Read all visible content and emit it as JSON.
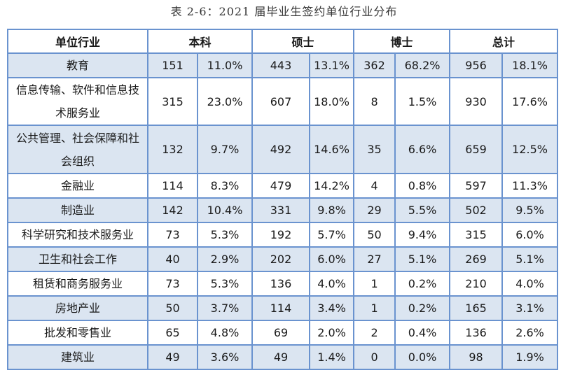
{
  "caption": "表 2-6：2021 届毕业生签约单位行业分布",
  "table": {
    "headers": [
      "单位行业",
      "本科",
      "硕士",
      "博士",
      "总计"
    ],
    "rows": [
      {
        "industry": "教育",
        "bk_n": "151",
        "bk_p": "11.0%",
        "ss_n": "443",
        "ss_p": "13.1%",
        "bs_n": "362",
        "bs_p": "68.2%",
        "zj_n": "956",
        "zj_p": "18.1%"
      },
      {
        "industry": "信息传输、软件和信息技术服务业",
        "bk_n": "315",
        "bk_p": "23.0%",
        "ss_n": "607",
        "ss_p": "18.0%",
        "bs_n": "8",
        "bs_p": "1.5%",
        "zj_n": "930",
        "zj_p": "17.6%"
      },
      {
        "industry": "公共管理、社会保障和社会组织",
        "bk_n": "132",
        "bk_p": "9.7%",
        "ss_n": "492",
        "ss_p": "14.6%",
        "bs_n": "35",
        "bs_p": "6.6%",
        "zj_n": "659",
        "zj_p": "12.5%"
      },
      {
        "industry": "金融业",
        "bk_n": "114",
        "bk_p": "8.3%",
        "ss_n": "479",
        "ss_p": "14.2%",
        "bs_n": "4",
        "bs_p": "0.8%",
        "zj_n": "597",
        "zj_p": "11.3%"
      },
      {
        "industry": "制造业",
        "bk_n": "142",
        "bk_p": "10.4%",
        "ss_n": "331",
        "ss_p": "9.8%",
        "bs_n": "29",
        "bs_p": "5.5%",
        "zj_n": "502",
        "zj_p": "9.5%"
      },
      {
        "industry": "科学研究和技术服务业",
        "bk_n": "73",
        "bk_p": "5.3%",
        "ss_n": "192",
        "ss_p": "5.7%",
        "bs_n": "50",
        "bs_p": "9.4%",
        "zj_n": "315",
        "zj_p": "6.0%"
      },
      {
        "industry": "卫生和社会工作",
        "bk_n": "40",
        "bk_p": "2.9%",
        "ss_n": "202",
        "ss_p": "6.0%",
        "bs_n": "27",
        "bs_p": "5.1%",
        "zj_n": "269",
        "zj_p": "5.1%"
      },
      {
        "industry": "租赁和商务服务业",
        "bk_n": "73",
        "bk_p": "5.3%",
        "ss_n": "136",
        "ss_p": "4.0%",
        "bs_n": "1",
        "bs_p": "0.2%",
        "zj_n": "210",
        "zj_p": "4.0%"
      },
      {
        "industry": "房地产业",
        "bk_n": "50",
        "bk_p": "3.7%",
        "ss_n": "114",
        "ss_p": "3.4%",
        "bs_n": "1",
        "bs_p": "0.2%",
        "zj_n": "165",
        "zj_p": "3.1%"
      },
      {
        "industry": "批发和零售业",
        "bk_n": "65",
        "bk_p": "4.8%",
        "ss_n": "69",
        "ss_p": "2.0%",
        "bs_n": "2",
        "bs_p": "0.4%",
        "zj_n": "136",
        "zj_p": "2.6%"
      },
      {
        "industry": "建筑业",
        "bk_n": "49",
        "bk_p": "3.6%",
        "ss_n": "49",
        "ss_p": "1.4%",
        "bs_n": "0",
        "bs_p": "0.0%",
        "zj_n": "98",
        "zj_p": "1.9%"
      }
    ]
  },
  "colors": {
    "border": "#6a93cf",
    "shaded_row": "#dbe5f1",
    "plain_row": "#ffffff"
  }
}
